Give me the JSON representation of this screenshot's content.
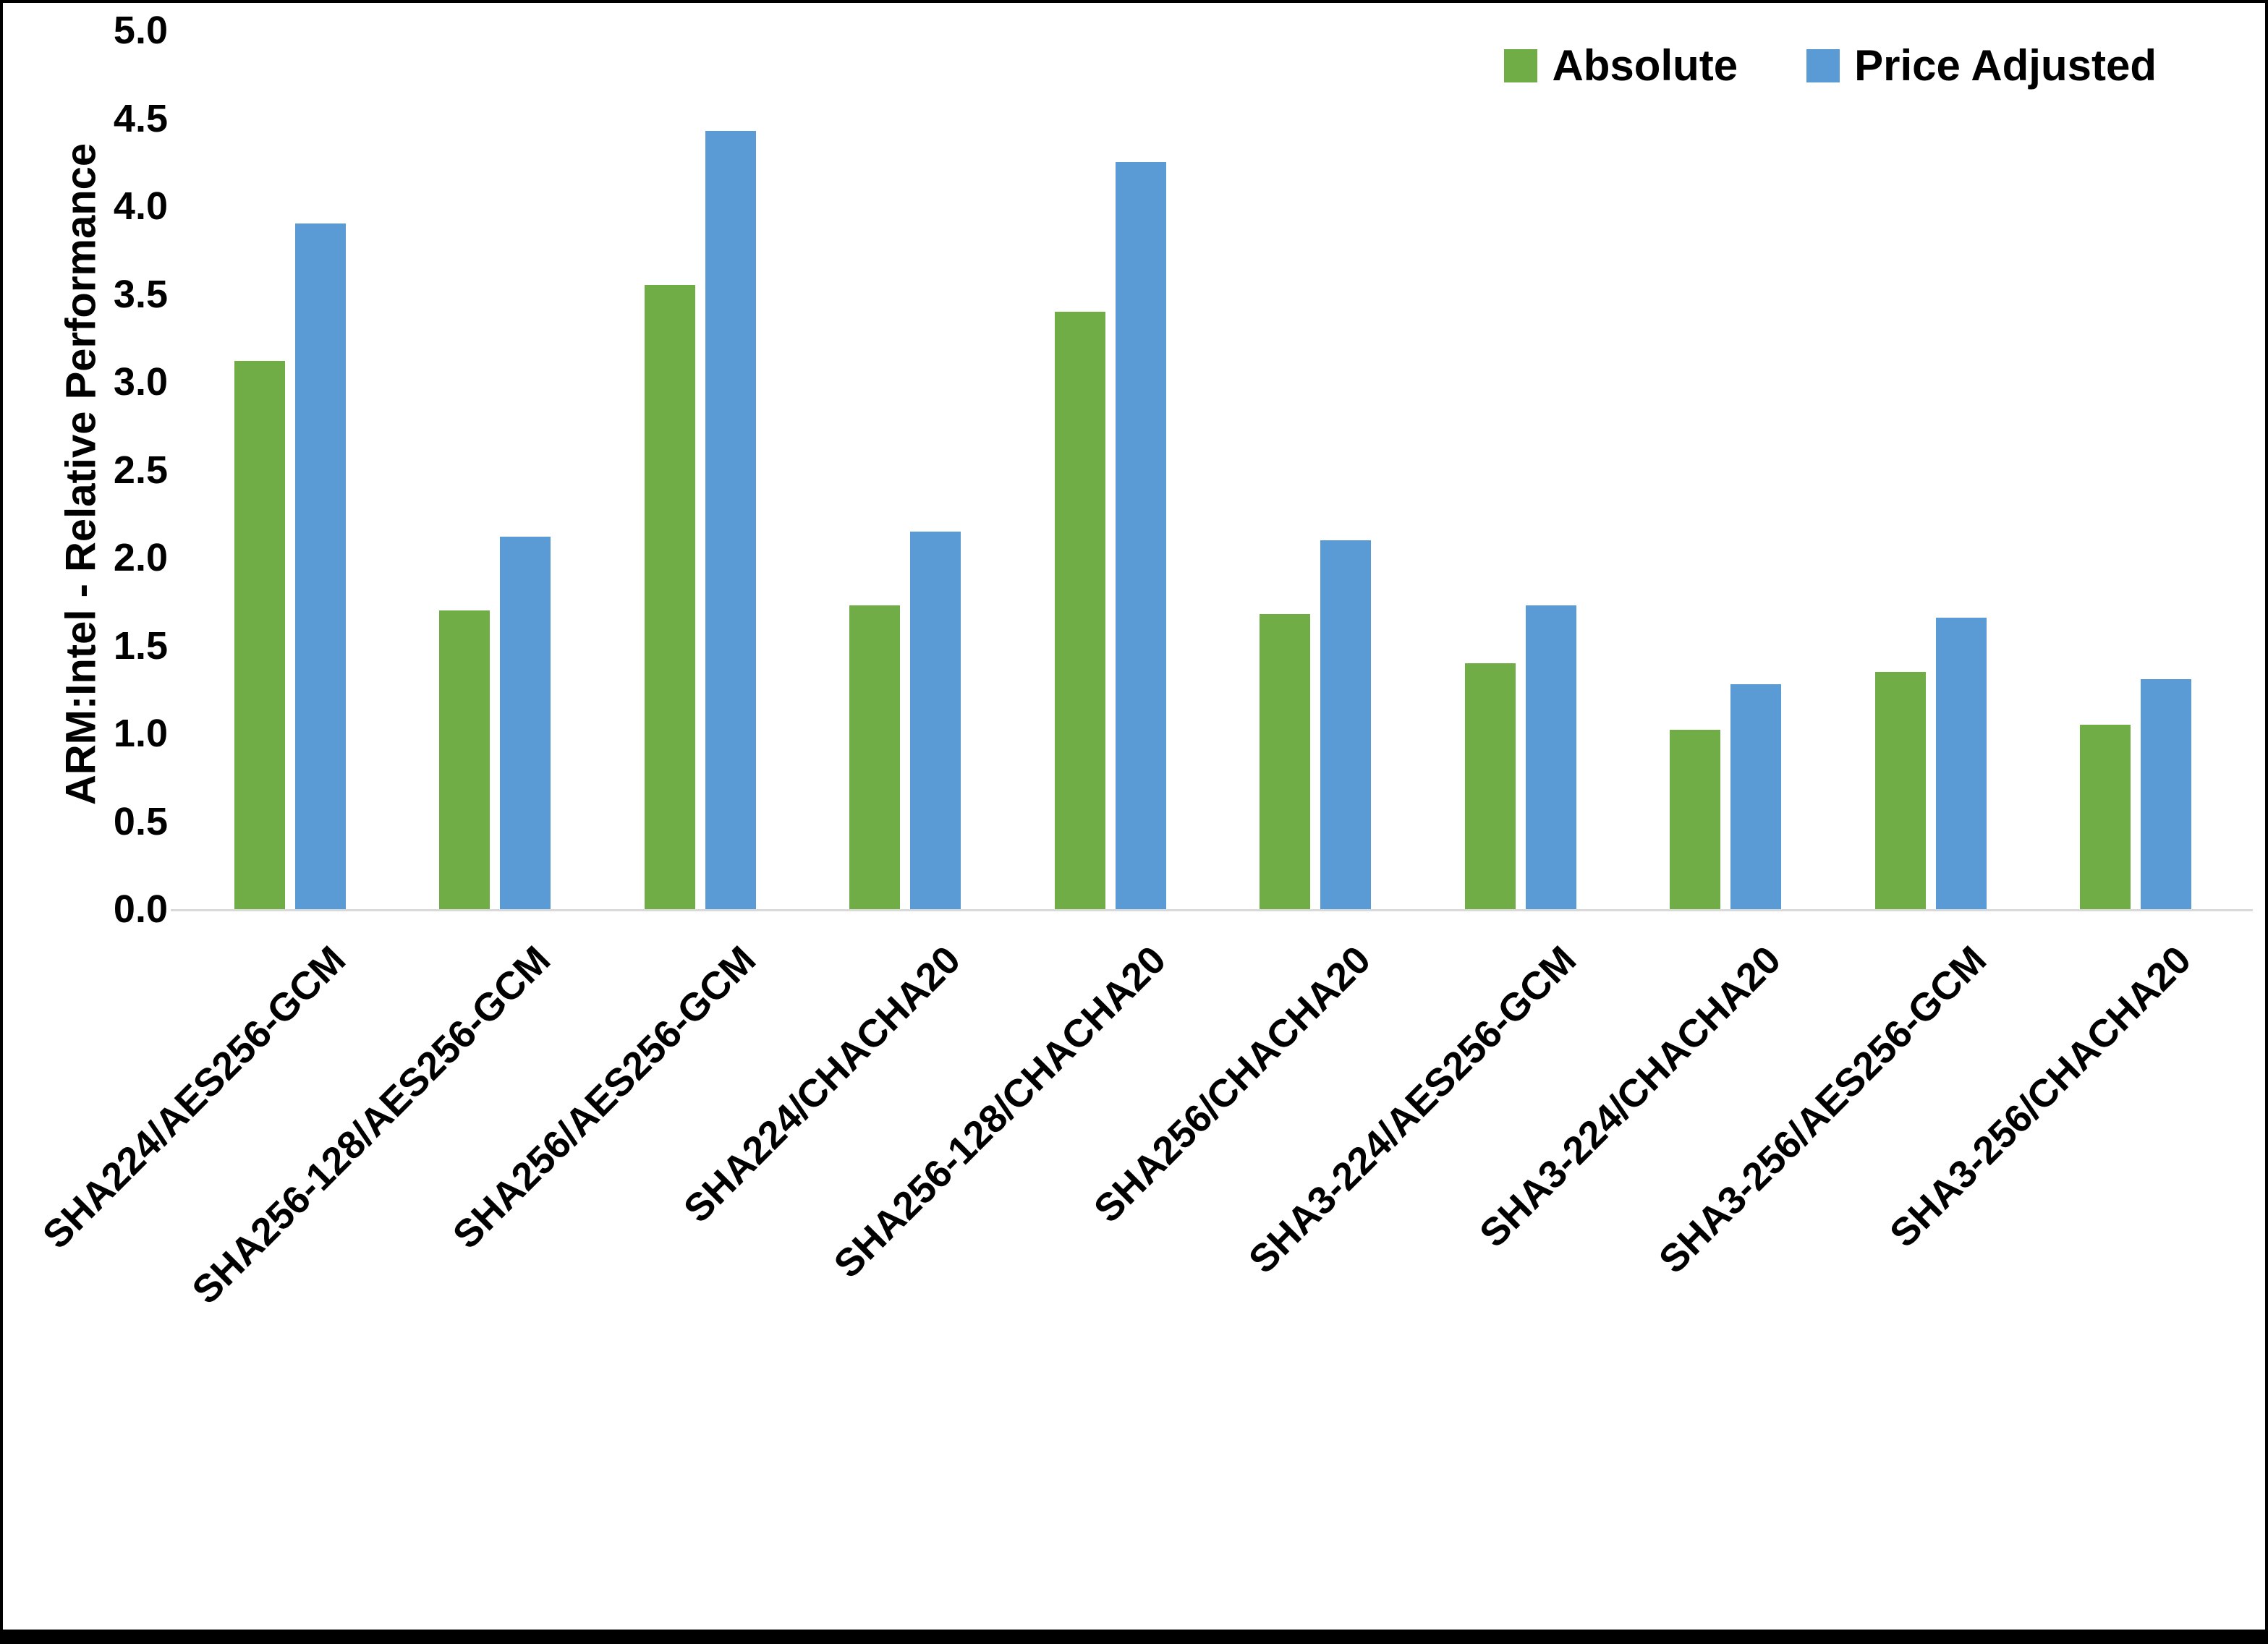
{
  "chart_data": {
    "type": "bar",
    "categories": [
      "SHA224/AES256-GCM",
      "SHA256-128/AES256-GCM",
      "SHA256/AES256-GCM",
      "SHA224/CHACHA20",
      "SHA256-128/CHACHA20",
      "SHA256/CHACHA20",
      "SHA3-224/AES256-GCM",
      "SHA3-224/CHACHA20",
      "SHA3-256/AES256-GCM",
      "SHA3-256/CHACHA20"
    ],
    "series": [
      {
        "name": "Absolute",
        "color": "#70AD47",
        "values": [
          3.12,
          1.7,
          3.55,
          1.73,
          3.4,
          1.68,
          1.4,
          1.02,
          1.35,
          1.05
        ]
      },
      {
        "name": "Price Adjusted",
        "color": "#5B9BD5",
        "values": [
          3.9,
          2.12,
          4.43,
          2.15,
          4.25,
          2.1,
          1.73,
          1.28,
          1.66,
          1.31
        ]
      }
    ],
    "ylabel": "ARM:Intel - Relative Performance",
    "ylim": [
      0,
      5
    ],
    "ytick_step": 0.5,
    "yticks": [
      "0.0",
      "0.5",
      "1.0",
      "1.5",
      "2.0",
      "2.5",
      "3.0",
      "3.5",
      "4.0",
      "4.5",
      "5.0"
    ],
    "grid": false,
    "legend_position": "top-right",
    "axis_line_color": "#d9d9d9"
  }
}
